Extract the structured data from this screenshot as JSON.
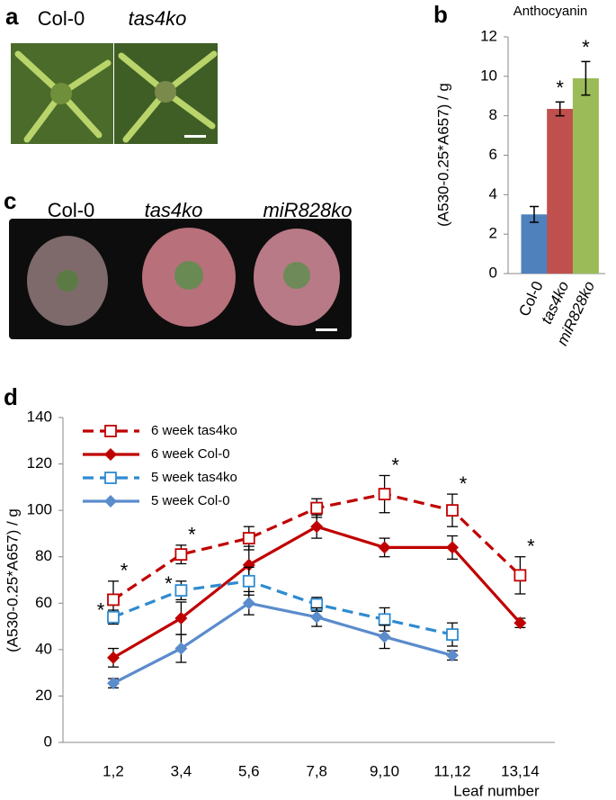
{
  "panels": {
    "a": "a",
    "b": "b",
    "c": "c",
    "d": "d"
  },
  "photo_a": {
    "labels": [
      "Col-0",
      "tas4ko"
    ]
  },
  "photo_c": {
    "labels": [
      "Col-0",
      "tas4ko",
      "miR828ko"
    ]
  },
  "chart_data": [
    {
      "type": "bar",
      "title": "Anthocyanin",
      "y_label": "(A530-0.25*A657) / g",
      "categories": [
        "Col-0",
        "tas4ko",
        "miR828ko"
      ],
      "values": [
        3.0,
        8.35,
        9.9
      ],
      "errors": [
        0.4,
        0.35,
        0.85
      ],
      "colors": [
        "#4f81bd",
        "#c0504d",
        "#9bbb59"
      ],
      "significance": [
        null,
        "*",
        "*"
      ],
      "ylim": [
        0,
        12
      ],
      "yticks": [
        0,
        2,
        4,
        6,
        8,
        10,
        12
      ]
    },
    {
      "type": "line",
      "y_label": "(A530-0.25*A657) / g",
      "x_label": "Leaf number",
      "categories": [
        "1,2",
        "3,4",
        "5,6",
        "7,8",
        "9,10",
        "11,12",
        "13,14"
      ],
      "ylim": [
        0,
        140
      ],
      "yticks": [
        0,
        20,
        40,
        60,
        80,
        100,
        120,
        140
      ],
      "series": [
        {
          "name": "6 week tas4ko",
          "color": "#c00000",
          "dashed": true,
          "marker": "square-open",
          "values": [
            61.5,
            81,
            88,
            101,
            107,
            100,
            72
          ],
          "errors": [
            8,
            4,
            5,
            4,
            8,
            7,
            8
          ],
          "significance": [
            "*",
            "*",
            null,
            null,
            "*",
            "*",
            "*"
          ]
        },
        {
          "name": "6 week Col-0",
          "color": "#c00000",
          "dashed": false,
          "marker": "diamond",
          "values": [
            36.5,
            53.5,
            76.5,
            93,
            84,
            84,
            51.5
          ],
          "errors": [
            4,
            7,
            8,
            5,
            4,
            5,
            2
          ]
        },
        {
          "name": "5 week tas4ko",
          "color": "#2e8bd0",
          "dashed": true,
          "marker": "square-open",
          "values": [
            54,
            65.5,
            69.5,
            59.5,
            53,
            46.5,
            null
          ],
          "errors": [
            3,
            4,
            6,
            3,
            5,
            5,
            null
          ],
          "significance": [
            "*",
            "*",
            null,
            null,
            null,
            null,
            null
          ]
        },
        {
          "name": "5 week Col-0",
          "color": "#5b8ccc",
          "dashed": false,
          "marker": "diamond",
          "values": [
            25.5,
            40.5,
            60,
            54,
            45.5,
            37.5,
            null
          ],
          "errors": [
            2,
            6,
            5,
            4,
            5,
            2,
            null
          ]
        }
      ]
    }
  ]
}
